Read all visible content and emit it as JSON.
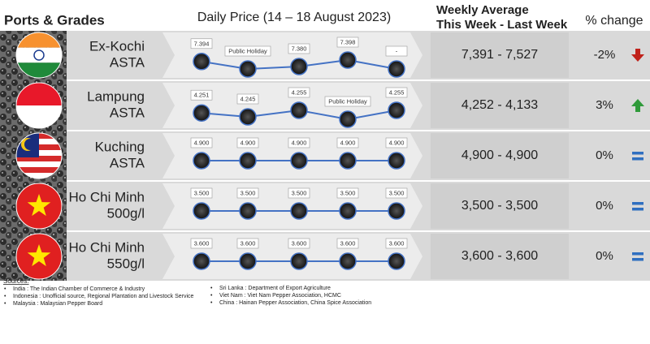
{
  "header": {
    "ports": "Ports & Grades",
    "daily": "Daily Price (14 – 18 August 2023)",
    "weekly_line1": "Weekly Average",
    "weekly_line2": "This Week - Last Week",
    "change": "% change"
  },
  "rows": [
    {
      "port": "Ex-Kochi",
      "grade": "ASTA",
      "daily": [
        "7.394",
        "Public Holiday",
        "7.380",
        "7.398",
        "-"
      ],
      "weekly": "7,391 - 7,527",
      "change": "-2%"
    },
    {
      "port": "Lampung",
      "grade": "ASTA",
      "daily": [
        "4.251",
        "4.245",
        "4.255",
        "Public Holiday",
        "4.255"
      ],
      "weekly": "4,252 - 4,133",
      "change": "3%"
    },
    {
      "port": "Kuching",
      "grade": "ASTA",
      "daily": [
        "4.900",
        "4.900",
        "4.900",
        "4.900",
        "4.900"
      ],
      "weekly": "4,900 - 4,900",
      "change": "0%"
    },
    {
      "port": "Ho Chi Minh",
      "grade": "500g/l",
      "daily": [
        "3.500",
        "3.500",
        "3.500",
        "3.500",
        "3.500"
      ],
      "weekly": "3,500 - 3,500",
      "change": "0%"
    },
    {
      "port": "Ho Chi Minh",
      "grade": "550g/l",
      "daily": [
        "3.600",
        "3.600",
        "3.600",
        "3.600",
        "3.600"
      ],
      "weekly": "3,600 - 3,600",
      "change": "0%"
    }
  ],
  "sources": {
    "title": "Sources:",
    "left": [
      "India : The Indian Chamber of Commerce & Industry",
      "Indonesia : Unofficial source, Regional Plantation and Livestock Service",
      "Malaysia : Malaysian Pepper Board"
    ],
    "right": [
      "Sri Lanka : Department of Export Agriculture",
      "Viet Nam : Viet Nam Pepper Association, HCMC",
      "China : Hainan Pepper Association, China Spice Association"
    ]
  }
}
